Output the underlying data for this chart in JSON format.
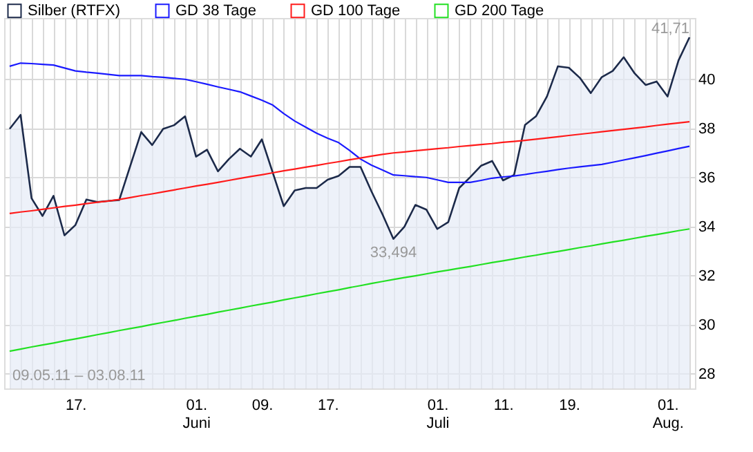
{
  "chart_data": {
    "type": "line",
    "categories": [
      null,
      null,
      null,
      null,
      null,
      null,
      "17.",
      null,
      null,
      null,
      null,
      null,
      null,
      null,
      null,
      null,
      null,
      "01.\nJuni",
      null,
      null,
      null,
      null,
      null,
      "09.",
      null,
      null,
      null,
      null,
      null,
      "17.",
      null,
      null,
      null,
      null,
      null,
      null,
      null,
      null,
      null,
      "01.\nJuli",
      null,
      null,
      null,
      null,
      null,
      "11.",
      null,
      null,
      null,
      null,
      null,
      "19.",
      null,
      null,
      null,
      null,
      null,
      null,
      null,
      null,
      "01.\nAug.",
      null,
      null
    ],
    "series": [
      {
        "name": "Silber (RTFX)",
        "type": "area",
        "color": "#1c2a4a",
        "values": [
          37.98,
          38.55,
          35.15,
          34.43,
          35.25,
          33.64,
          34.06,
          35.1,
          35.0,
          35.04,
          35.08,
          36.47,
          37.85,
          37.32,
          37.98,
          38.13,
          38.49,
          36.85,
          37.13,
          36.25,
          36.75,
          37.17,
          36.85,
          37.55,
          36.19,
          34.83,
          35.47,
          35.57,
          35.57,
          35.91,
          36.06,
          36.43,
          36.43,
          35.43,
          34.5,
          33.494,
          33.99,
          34.88,
          34.69,
          33.9,
          34.18,
          35.57,
          36.01,
          36.48,
          36.67,
          35.88,
          36.1,
          38.14,
          38.49,
          39.3,
          40.53,
          40.47,
          40.06,
          39.44,
          40.09,
          40.34,
          40.9,
          40.24,
          39.77,
          39.91,
          39.3,
          40.77,
          41.71
        ]
      },
      {
        "name": "GD 38 Tage",
        "color": "#1a1aff",
        "values": [
          40.53,
          40.66,
          40.64,
          40.61,
          40.58,
          40.46,
          40.34,
          40.29,
          40.25,
          40.2,
          40.15,
          40.15,
          40.15,
          40.11,
          40.08,
          40.04,
          40.0,
          39.9,
          39.8,
          39.69,
          39.59,
          39.49,
          39.32,
          39.15,
          38.95,
          38.6,
          38.3,
          38.05,
          37.8,
          37.6,
          37.42,
          37.1,
          36.75,
          36.5,
          36.3,
          36.1,
          36.07,
          36.03,
          36.0,
          35.9,
          35.8,
          35.8,
          35.8,
          35.88,
          35.97,
          36.02,
          36.06,
          36.12,
          36.19,
          36.25,
          36.32,
          36.38,
          36.43,
          36.48,
          36.53,
          36.62,
          36.71,
          36.8,
          36.89,
          36.99,
          37.08,
          37.18,
          37.27
        ]
      },
      {
        "name": "GD 100 Tage",
        "color": "#ff1a1a",
        "values": [
          34.53,
          34.59,
          34.64,
          34.7,
          34.76,
          34.82,
          34.87,
          34.93,
          34.99,
          35.04,
          35.1,
          35.18,
          35.26,
          35.33,
          35.41,
          35.49,
          35.57,
          35.65,
          35.72,
          35.8,
          35.88,
          35.96,
          36.04,
          36.11,
          36.19,
          36.27,
          36.34,
          36.42,
          36.49,
          36.57,
          36.64,
          36.72,
          36.79,
          36.87,
          36.94,
          37.0,
          37.04,
          37.09,
          37.13,
          37.17,
          37.21,
          37.26,
          37.3,
          37.34,
          37.38,
          37.43,
          37.47,
          37.51,
          37.56,
          37.61,
          37.66,
          37.71,
          37.76,
          37.81,
          37.86,
          37.91,
          37.96,
          38.01,
          38.06,
          38.12,
          38.17,
          38.22,
          38.27
        ]
      },
      {
        "name": "GD 200 Tage",
        "color": "#22e022",
        "values": [
          28.92,
          29.0,
          29.09,
          29.17,
          29.25,
          29.34,
          29.42,
          29.5,
          29.59,
          29.67,
          29.76,
          29.84,
          29.92,
          30.01,
          30.09,
          30.17,
          30.26,
          30.34,
          30.42,
          30.51,
          30.59,
          30.67,
          30.76,
          30.84,
          30.92,
          31.01,
          31.09,
          31.17,
          31.26,
          31.34,
          31.42,
          31.51,
          31.59,
          31.68,
          31.76,
          31.84,
          31.92,
          31.99,
          32.07,
          32.15,
          32.22,
          32.3,
          32.37,
          32.45,
          32.53,
          32.6,
          32.68,
          32.76,
          32.83,
          32.91,
          32.98,
          33.06,
          33.14,
          33.21,
          33.29,
          33.37,
          33.44,
          33.52,
          33.6,
          33.67,
          33.75,
          33.83,
          33.9
        ]
      }
    ],
    "ylim": [
      27.4,
      42.5
    ],
    "yticks": [
      28,
      30,
      32,
      34,
      36,
      38,
      40
    ],
    "grid": true,
    "legend": "top left",
    "annotations": [
      "09.05.11 – 03.08.11",
      "41,71",
      {
        "text": "33,494",
        "y": 33.494
      }
    ]
  }
}
